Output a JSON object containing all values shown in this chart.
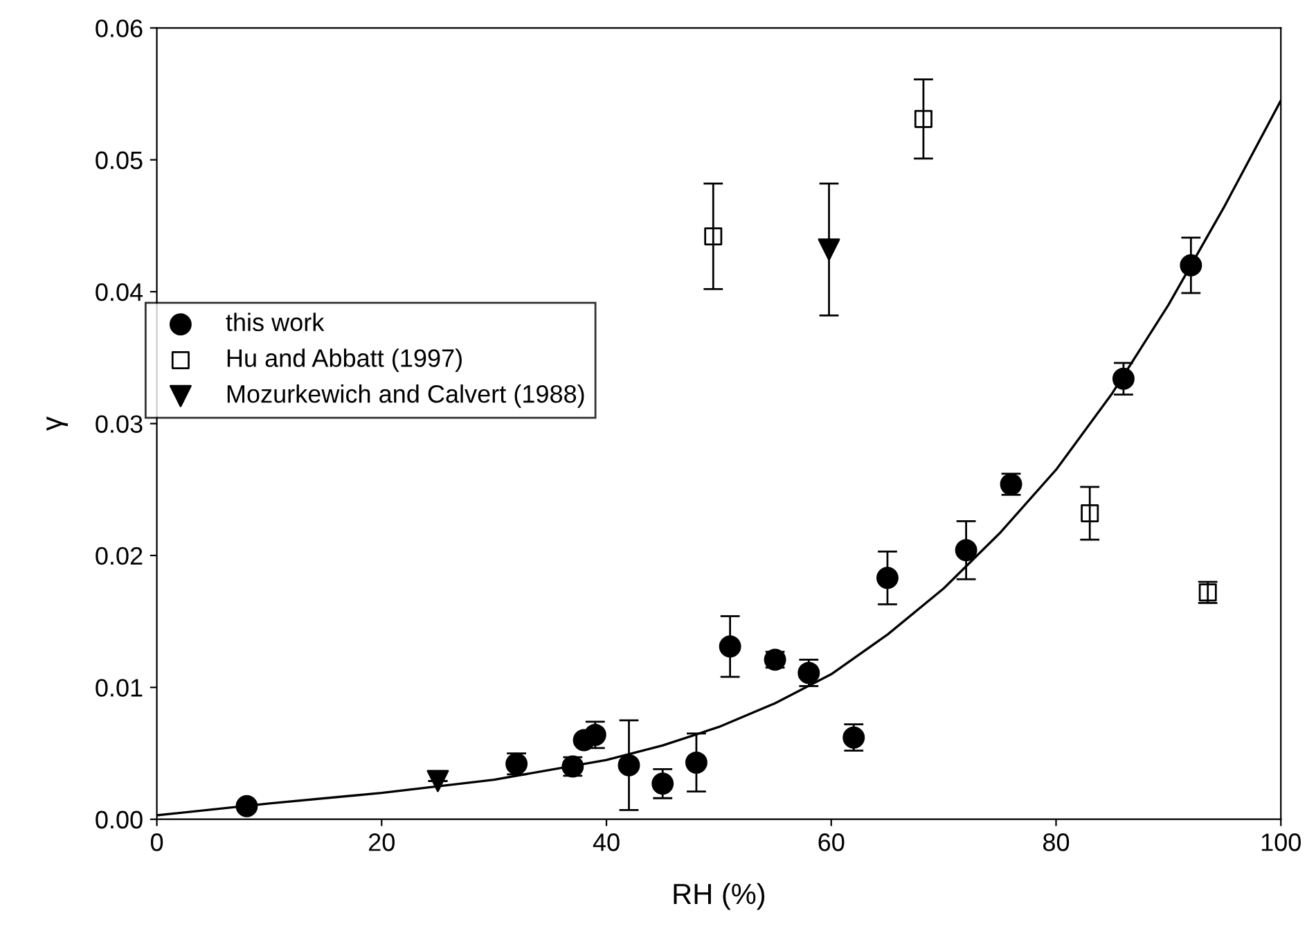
{
  "chart_data": {
    "type": "scatter",
    "xlabel": "RH (%)",
    "ylabel": "γ",
    "xlim": [
      0,
      100
    ],
    "ylim": [
      0,
      0.06
    ],
    "xticks": [
      0,
      20,
      40,
      60,
      80,
      100
    ],
    "yticks": [
      {
        "value": 0,
        "label": "0.00"
      },
      {
        "value": 0.01,
        "label": "0.01"
      },
      {
        "value": 0.02,
        "label": "0.02"
      },
      {
        "value": 0.03,
        "label": "0.03"
      },
      {
        "value": 0.04,
        "label": "0.04"
      },
      {
        "value": 0.05,
        "label": "0.05"
      },
      {
        "value": 0.06,
        "label": "0.06"
      }
    ],
    "grid": false,
    "legend": "center left",
    "series": [
      {
        "name": "this work",
        "marker": "circle",
        "color": "#000000",
        "x": [
          8,
          32,
          37,
          38,
          39,
          42,
          45,
          48,
          51,
          55,
          58,
          62,
          65,
          72,
          76,
          86,
          92
        ],
        "values": [
          0.001,
          0.0042,
          0.004,
          0.006,
          0.0064,
          0.0041,
          0.0027,
          0.0043,
          0.0131,
          0.0121,
          0.0111,
          0.0062,
          0.0183,
          0.0204,
          0.0254,
          0.0334,
          0.042
        ],
        "errors": [
          null,
          0.0008,
          0.0007,
          null,
          0.001,
          0.0034,
          0.0011,
          0.0022,
          0.0023,
          0.0006,
          0.001,
          0.001,
          0.002,
          0.0022,
          0.0008,
          0.0012,
          0.0021
        ]
      },
      {
        "name": "Hu and Abbatt (1997)",
        "marker": "square",
        "color": "#000000",
        "x": [
          49.5,
          68.2,
          83,
          93.5
        ],
        "values": [
          0.0442,
          0.0531,
          0.0232,
          0.0172
        ],
        "errors": [
          0.004,
          0.003,
          0.002,
          0.0008
        ]
      },
      {
        "name": "Mozurkewich and Calvert (1988)",
        "marker": "triangle",
        "color": "#000000",
        "x": [
          25,
          59.8
        ],
        "values": [
          0.0029,
          0.0432
        ],
        "errors": [
          null,
          0.005
        ]
      },
      {
        "type": "line",
        "marker": "none",
        "line_style": "solid",
        "color": "#000000",
        "x": [
          0,
          10,
          20,
          30,
          40,
          45,
          50,
          55,
          60,
          65,
          70,
          75,
          80,
          85,
          90,
          95,
          100
        ],
        "values": [
          0.0003,
          0.0012,
          0.002,
          0.003,
          0.0045,
          0.0056,
          0.007,
          0.0088,
          0.011,
          0.014,
          0.0175,
          0.0217,
          0.0265,
          0.0323,
          0.039,
          0.0465,
          0.0545
        ]
      }
    ]
  }
}
